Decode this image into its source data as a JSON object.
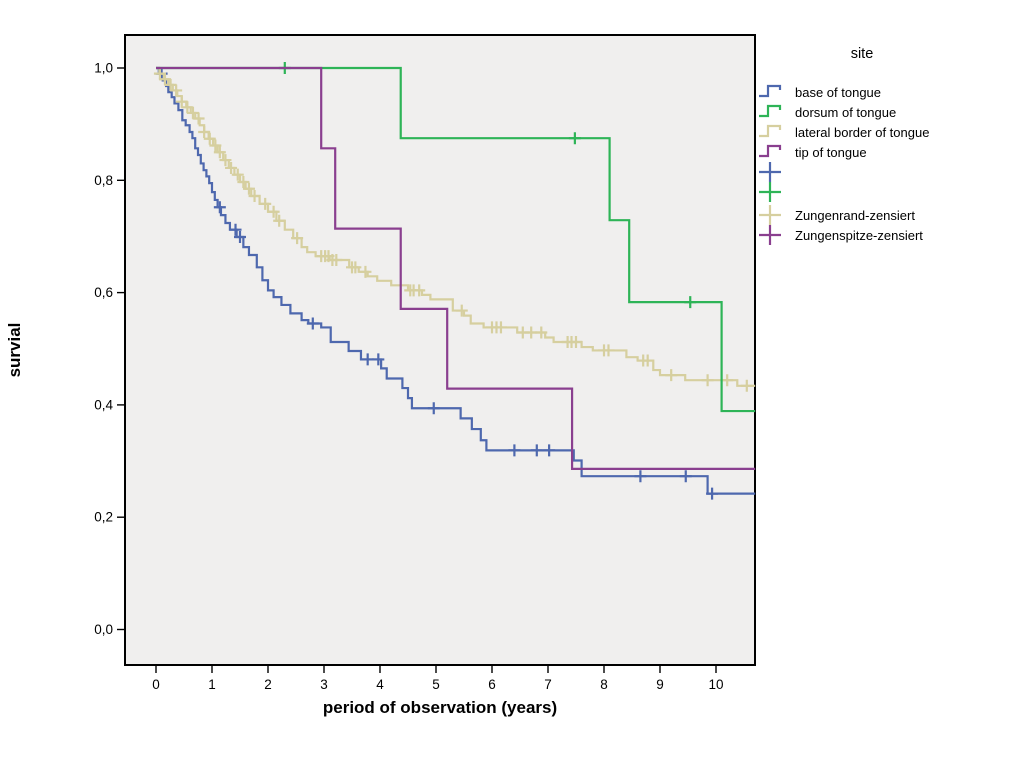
{
  "figure": {
    "background": "#ffffff",
    "plot_background": "#f0efee",
    "frame_color": "#000000",
    "tick_color": "#000000"
  },
  "axes": {
    "x": {
      "title": "period of observation (years)",
      "tick_values": [
        0,
        1,
        2,
        3,
        4,
        5,
        6,
        7,
        8,
        9,
        10
      ],
      "tick_labels": [
        "0",
        "1",
        "2",
        "3",
        "4",
        "5",
        "6",
        "7",
        "8",
        "9",
        "10"
      ],
      "range_years": [
        -0.55,
        10.7
      ]
    },
    "y": {
      "title": "survial",
      "tick_values": [
        1.0,
        0.8,
        0.6,
        0.4,
        0.2,
        0.0
      ],
      "tick_labels": [
        "1,0",
        "0,8",
        "0,6",
        "0,4",
        "0,2",
        "0,0"
      ],
      "range": [
        -0.065,
        1.06
      ]
    }
  },
  "legend": {
    "title": "site",
    "items": [
      {
        "label": "base of tongue",
        "type": "step",
        "color": "#4e68ae"
      },
      {
        "label": "dorsum of tongue",
        "type": "step",
        "color": "#2eb457"
      },
      {
        "label": "lateral border of tongue",
        "type": "step",
        "color": "#d6cf9f"
      },
      {
        "label": "tip of tongue",
        "type": "step",
        "color": "#8a3f8f"
      },
      {
        "label": "",
        "type": "censor",
        "color": "#4e68ae"
      },
      {
        "label": "",
        "type": "censor",
        "color": "#2eb457"
      },
      {
        "label": "Zungenrand-zensiert",
        "type": "censor",
        "color": "#d6cf9f"
      },
      {
        "label": "Zungenspitze-zensiert",
        "type": "censor",
        "color": "#8a3f8f"
      }
    ]
  },
  "chart_data": {
    "type": "line",
    "subtype": "kaplan-meier-step",
    "title": "",
    "xlabel": "period of observation (years)",
    "ylabel": "survial",
    "x_end": 10.7,
    "series": [
      {
        "name": "base of tongue",
        "color": "#4e68ae",
        "steps": [
          [
            0,
            1
          ],
          [
            0.05,
            0.99
          ],
          [
            0.12,
            0.978
          ],
          [
            0.18,
            0.968
          ],
          [
            0.22,
            0.957
          ],
          [
            0.28,
            0.948
          ],
          [
            0.33,
            0.937
          ],
          [
            0.4,
            0.925
          ],
          [
            0.47,
            0.907
          ],
          [
            0.53,
            0.898
          ],
          [
            0.6,
            0.886
          ],
          [
            0.65,
            0.875
          ],
          [
            0.7,
            0.857
          ],
          [
            0.75,
            0.845
          ],
          [
            0.8,
            0.83
          ],
          [
            0.85,
            0.818
          ],
          [
            0.9,
            0.807
          ],
          [
            0.95,
            0.795
          ],
          [
            1.0,
            0.779
          ],
          [
            1.05,
            0.765
          ],
          [
            1.1,
            0.752
          ],
          [
            1.16,
            0.738
          ],
          [
            1.24,
            0.724
          ],
          [
            1.32,
            0.712
          ],
          [
            1.44,
            0.699
          ],
          [
            1.56,
            0.681
          ],
          [
            1.66,
            0.667
          ],
          [
            1.8,
            0.645
          ],
          [
            1.9,
            0.622
          ],
          [
            2.0,
            0.604
          ],
          [
            2.1,
            0.592
          ],
          [
            2.24,
            0.578
          ],
          [
            2.4,
            0.563
          ],
          [
            2.6,
            0.551
          ],
          [
            2.72,
            0.545
          ],
          [
            2.95,
            0.538
          ],
          [
            3.12,
            0.512
          ],
          [
            3.44,
            0.496
          ],
          [
            3.66,
            0.481
          ],
          [
            4.02,
            0.465
          ],
          [
            4.12,
            0.447
          ],
          [
            4.4,
            0.43
          ],
          [
            4.5,
            0.412
          ],
          [
            4.57,
            0.394
          ],
          [
            5.44,
            0.376
          ],
          [
            5.64,
            0.357
          ],
          [
            5.8,
            0.337
          ],
          [
            5.9,
            0.319
          ],
          [
            7.46,
            0.301
          ],
          [
            7.6,
            0.273
          ],
          [
            9.85,
            0.242
          ]
        ],
        "censor_times": [
          0.1,
          1.14,
          1.42,
          1.5,
          2.8,
          3.78,
          3.97,
          4.96,
          6.4,
          6.8,
          7.02,
          8.65,
          9.46,
          9.93
        ]
      },
      {
        "name": "lateral border of tongue",
        "color": "#d6cf9f",
        "steps": [
          [
            0,
            1
          ],
          [
            0.06,
            0.99
          ],
          [
            0.14,
            0.98
          ],
          [
            0.22,
            0.97
          ],
          [
            0.3,
            0.96
          ],
          [
            0.38,
            0.95
          ],
          [
            0.46,
            0.94
          ],
          [
            0.54,
            0.93
          ],
          [
            0.62,
            0.92
          ],
          [
            0.7,
            0.91
          ],
          [
            0.78,
            0.898
          ],
          [
            0.86,
            0.886
          ],
          [
            0.94,
            0.874
          ],
          [
            1.02,
            0.862
          ],
          [
            1.1,
            0.85
          ],
          [
            1.2,
            0.836
          ],
          [
            1.3,
            0.822
          ],
          [
            1.4,
            0.81
          ],
          [
            1.5,
            0.797
          ],
          [
            1.6,
            0.785
          ],
          [
            1.7,
            0.772
          ],
          [
            1.85,
            0.758
          ],
          [
            2.0,
            0.744
          ],
          [
            2.15,
            0.728
          ],
          [
            2.3,
            0.712
          ],
          [
            2.45,
            0.697
          ],
          [
            2.6,
            0.681
          ],
          [
            2.7,
            0.672
          ],
          [
            2.85,
            0.665
          ],
          [
            3.1,
            0.658
          ],
          [
            3.45,
            0.645
          ],
          [
            3.62,
            0.637
          ],
          [
            3.78,
            0.629
          ],
          [
            3.95,
            0.621
          ],
          [
            4.2,
            0.613
          ],
          [
            4.5,
            0.604
          ],
          [
            4.75,
            0.596
          ],
          [
            4.9,
            0.588
          ],
          [
            5.3,
            0.568
          ],
          [
            5.5,
            0.559
          ],
          [
            5.62,
            0.545
          ],
          [
            5.85,
            0.538
          ],
          [
            6.45,
            0.529
          ],
          [
            6.95,
            0.52
          ],
          [
            7.1,
            0.512
          ],
          [
            7.6,
            0.503
          ],
          [
            7.8,
            0.497
          ],
          [
            8.4,
            0.485
          ],
          [
            8.6,
            0.479
          ],
          [
            8.88,
            0.462
          ],
          [
            9.0,
            0.453
          ],
          [
            9.45,
            0.444
          ],
          [
            10.38,
            0.434
          ]
        ],
        "censor_times": [
          0.07,
          0.16,
          0.26,
          0.36,
          0.46,
          0.56,
          0.66,
          0.76,
          0.86,
          0.96,
          1.06,
          1.14,
          1.24,
          1.34,
          1.46,
          1.56,
          1.66,
          1.76,
          1.95,
          2.1,
          2.2,
          2.52,
          2.95,
          3.02,
          3.08,
          3.15,
          3.22,
          3.5,
          3.56,
          3.74,
          4.54,
          4.6,
          4.7,
          5.46,
          6.0,
          6.08,
          6.16,
          6.55,
          6.7,
          6.88,
          7.35,
          7.42,
          7.5,
          8.0,
          8.08,
          8.7,
          8.78,
          9.2,
          9.85,
          10.2,
          10.55
        ]
      },
      {
        "name": "dorsum of tongue",
        "color": "#2eb457",
        "steps": [
          [
            0,
            1
          ],
          [
            4.37,
            0.875
          ],
          [
            8.1,
            0.729
          ],
          [
            8.45,
            0.583
          ],
          [
            10.1,
            0.389
          ]
        ],
        "censor_times": [
          2.3,
          7.48,
          9.54
        ]
      },
      {
        "name": "tip of tongue",
        "color": "#8a3f8f",
        "steps": [
          [
            0,
            1
          ],
          [
            2.95,
            0.857
          ],
          [
            3.2,
            0.714
          ],
          [
            4.37,
            0.571
          ],
          [
            5.2,
            0.429
          ],
          [
            7.43,
            0.286
          ]
        ],
        "censor_times": []
      }
    ]
  }
}
